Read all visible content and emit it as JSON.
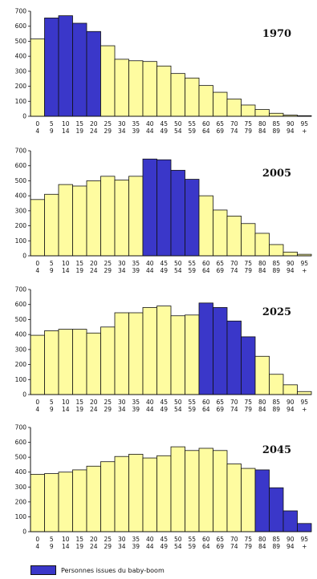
{
  "colors": {
    "boom": "#3a37c9",
    "other": "#fefca0",
    "border": "#111111"
  },
  "legend": {
    "label": "Personnes issues du baby-boom"
  },
  "chart_data": [
    {
      "type": "bar",
      "title": "1970",
      "categories": [
        "0-4",
        "5-9",
        "10-14",
        "15-19",
        "20-24",
        "25-29",
        "30-34",
        "35-39",
        "40-44",
        "45-49",
        "50-54",
        "55-59",
        "60-64",
        "65-69",
        "70-74",
        "75-79",
        "80-84",
        "85-89",
        "90-94",
        "95+"
      ],
      "values": [
        515,
        655,
        670,
        620,
        565,
        470,
        380,
        370,
        365,
        335,
        285,
        255,
        205,
        160,
        115,
        75,
        45,
        20,
        8,
        4
      ],
      "baby_boom": [
        false,
        true,
        true,
        true,
        true,
        false,
        false,
        false,
        false,
        false,
        false,
        false,
        false,
        false,
        false,
        false,
        false,
        false,
        false,
        false
      ],
      "ylim": [
        0,
        700
      ],
      "yticks": [
        0,
        100,
        200,
        300,
        400,
        500,
        600,
        700
      ]
    },
    {
      "type": "bar",
      "title": "2005",
      "categories": [
        "0-4",
        "5-9",
        "10-14",
        "15-19",
        "20-24",
        "25-29",
        "30-34",
        "35-39",
        "40-44",
        "45-49",
        "50-54",
        "55-59",
        "60-64",
        "65-69",
        "70-74",
        "75-79",
        "80-84",
        "85-89",
        "90-94",
        "95+"
      ],
      "values": [
        375,
        410,
        475,
        465,
        500,
        530,
        505,
        530,
        645,
        640,
        570,
        510,
        400,
        305,
        265,
        215,
        150,
        75,
        25,
        10
      ],
      "baby_boom": [
        false,
        false,
        false,
        false,
        false,
        false,
        false,
        false,
        true,
        true,
        true,
        true,
        false,
        false,
        false,
        false,
        false,
        false,
        false,
        false
      ],
      "ylim": [
        0,
        700
      ],
      "yticks": [
        0,
        100,
        200,
        300,
        400,
        500,
        600,
        700
      ]
    },
    {
      "type": "bar",
      "title": "2025",
      "categories": [
        "0-4",
        "5-9",
        "10-14",
        "15-19",
        "20-24",
        "25-29",
        "30-34",
        "35-39",
        "40-44",
        "45-49",
        "50-54",
        "55-59",
        "60-64",
        "65-69",
        "70-74",
        "75-79",
        "80-84",
        "85-89",
        "90-94",
        "95+"
      ],
      "values": [
        395,
        425,
        435,
        435,
        410,
        450,
        545,
        545,
        580,
        590,
        525,
        530,
        610,
        580,
        490,
        385,
        255,
        135,
        65,
        20
      ],
      "baby_boom": [
        false,
        false,
        false,
        false,
        false,
        false,
        false,
        false,
        false,
        false,
        false,
        false,
        true,
        true,
        true,
        true,
        false,
        false,
        false,
        false
      ],
      "ylim": [
        0,
        700
      ],
      "yticks": [
        0,
        100,
        200,
        300,
        400,
        500,
        600,
        700
      ]
    },
    {
      "type": "bar",
      "title": "2045",
      "categories": [
        "0-4",
        "5-9",
        "10-14",
        "15-19",
        "20-24",
        "25-29",
        "30-34",
        "35-39",
        "40-44",
        "45-49",
        "50-54",
        "55-59",
        "60-64",
        "65-69",
        "70-74",
        "75-79",
        "80-84",
        "85-89",
        "90-94",
        "95+"
      ],
      "values": [
        385,
        390,
        400,
        415,
        440,
        470,
        505,
        520,
        495,
        510,
        570,
        545,
        560,
        545,
        455,
        425,
        415,
        295,
        140,
        55
      ],
      "baby_boom": [
        false,
        false,
        false,
        false,
        false,
        false,
        false,
        false,
        false,
        false,
        false,
        false,
        false,
        false,
        false,
        false,
        true,
        true,
        true,
        true
      ],
      "ylim": [
        0,
        700
      ],
      "yticks": [
        0,
        100,
        200,
        300,
        400,
        500,
        600,
        700
      ]
    }
  ]
}
